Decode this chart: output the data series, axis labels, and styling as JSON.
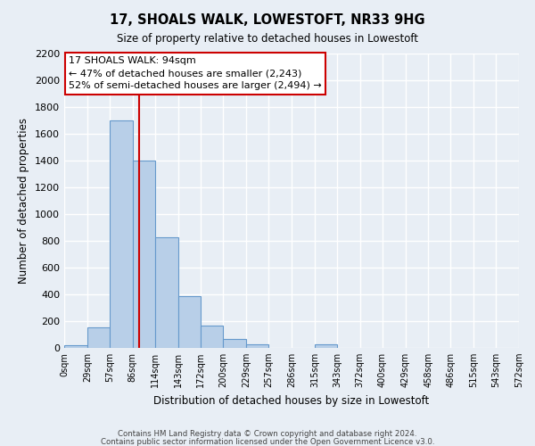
{
  "title": "17, SHOALS WALK, LOWESTOFT, NR33 9HG",
  "subtitle": "Size of property relative to detached houses in Lowestoft",
  "xlabel": "Distribution of detached houses by size in Lowestoft",
  "ylabel": "Number of detached properties",
  "bar_edges": [
    0,
    29,
    57,
    86,
    114,
    143,
    172,
    200,
    229,
    257,
    286,
    315,
    343,
    372,
    400,
    429,
    458,
    486,
    515,
    543,
    572
  ],
  "bar_heights": [
    20,
    155,
    1700,
    1400,
    830,
    390,
    165,
    65,
    30,
    0,
    0,
    25,
    0,
    0,
    0,
    0,
    0,
    0,
    0,
    0
  ],
  "bar_color": "#b8cfe8",
  "bar_edgecolor": "#6699cc",
  "property_line_x": 94,
  "property_line_color": "#cc0000",
  "annotation_line1": "17 SHOALS WALK: 94sqm",
  "annotation_line2": "← 47% of detached houses are smaller (2,243)",
  "annotation_line3": "52% of semi-detached houses are larger (2,494) →",
  "annotation_box_edgecolor": "#cc0000",
  "ylim": [
    0,
    2200
  ],
  "yticks": [
    0,
    200,
    400,
    600,
    800,
    1000,
    1200,
    1400,
    1600,
    1800,
    2000,
    2200
  ],
  "tick_labels": [
    "0sqm",
    "29sqm",
    "57sqm",
    "86sqm",
    "114sqm",
    "143sqm",
    "172sqm",
    "200sqm",
    "229sqm",
    "257sqm",
    "286sqm",
    "315sqm",
    "343sqm",
    "372sqm",
    "400sqm",
    "429sqm",
    "458sqm",
    "486sqm",
    "515sqm",
    "543sqm",
    "572sqm"
  ],
  "footer_line1": "Contains HM Land Registry data © Crown copyright and database right 2024.",
  "footer_line2": "Contains public sector information licensed under the Open Government Licence v3.0.",
  "background_color": "#e8eef5",
  "plot_bg_color": "#e8eef5",
  "grid_color": "#ffffff"
}
